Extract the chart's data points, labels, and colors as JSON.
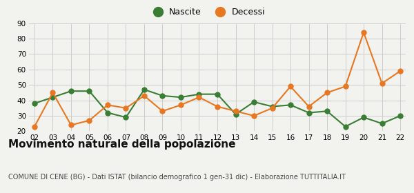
{
  "years": [
    "02",
    "03",
    "04",
    "05",
    "06",
    "07",
    "08",
    "09",
    "10",
    "11",
    "12",
    "13",
    "14",
    "15",
    "16",
    "17",
    "18",
    "19",
    "20",
    "21",
    "22"
  ],
  "nascite": [
    38,
    42,
    46,
    46,
    32,
    29,
    47,
    43,
    42,
    44,
    44,
    31,
    39,
    36,
    37,
    32,
    33,
    23,
    29,
    25,
    30
  ],
  "decessi": [
    23,
    45,
    24,
    27,
    37,
    35,
    43,
    33,
    37,
    42,
    36,
    33,
    30,
    35,
    49,
    36,
    45,
    49,
    84,
    51,
    59
  ],
  "nascite_color": "#3a7d35",
  "decessi_color": "#e87722",
  "bg_color": "#f2f2ee",
  "grid_color": "#cccccc",
  "ylim": [
    20,
    90
  ],
  "yticks": [
    20,
    30,
    40,
    50,
    60,
    70,
    80,
    90
  ],
  "title": "Movimento naturale della popolazione",
  "subtitle": "COMUNE DI CENE (BG) - Dati ISTAT (bilancio demografico 1 gen-31 dic) - Elaborazione TUTTITALIA.IT",
  "legend_labels": [
    "Nascite",
    "Decessi"
  ],
  "title_fontsize": 11,
  "subtitle_fontsize": 7,
  "marker_size": 5,
  "linewidth": 1.5
}
